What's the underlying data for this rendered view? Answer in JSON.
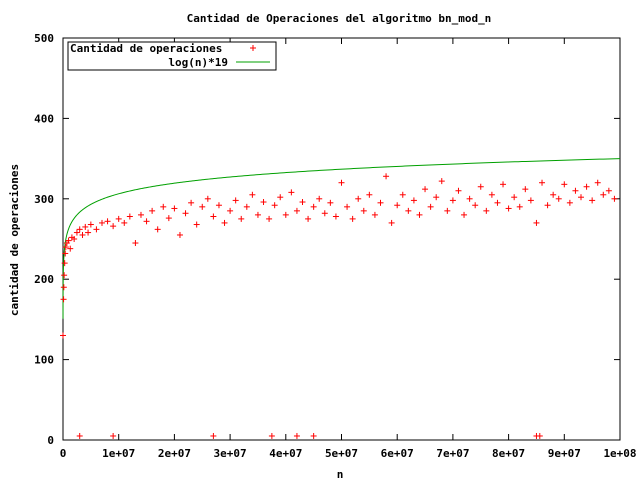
{
  "chart_data": {
    "type": "scatter",
    "title": "Cantidad de Operaciones del algoritmo bn_mod_n",
    "xlabel": "n",
    "ylabel": "cantidad de operaciones",
    "xlim": [
      0,
      100000000
    ],
    "ylim": [
      0,
      500
    ],
    "x_ticks": [
      0,
      10000000,
      20000000,
      30000000,
      40000000,
      50000000,
      60000000,
      70000000,
      80000000,
      90000000,
      100000000
    ],
    "x_tick_labels": [
      "0",
      "1e+07",
      "2e+07",
      "3e+07",
      "4e+07",
      "5e+07",
      "6e+07",
      "7e+07",
      "8e+07",
      "9e+07",
      "1e+08"
    ],
    "y_ticks": [
      0,
      100,
      200,
      300,
      400,
      500
    ],
    "y_tick_labels": [
      "0",
      "100",
      "200",
      "300",
      "400",
      "500"
    ],
    "grid": false,
    "legend_position": "top-left",
    "series": [
      {
        "name": "Cantidad de operaciones",
        "kind": "points",
        "marker": "plus",
        "color": "#ff0000",
        "points": [
          [
            0,
            130
          ],
          [
            100000,
            175
          ],
          [
            150000,
            190
          ],
          [
            200000,
            205
          ],
          [
            300000,
            220
          ],
          [
            400000,
            232
          ],
          [
            500000,
            240
          ],
          [
            700000,
            245
          ],
          [
            1000000,
            248
          ],
          [
            1300000,
            238
          ],
          [
            1600000,
            252
          ],
          [
            2000000,
            250
          ],
          [
            2500000,
            258
          ],
          [
            3000000,
            262
          ],
          [
            3500000,
            255
          ],
          [
            4000000,
            265
          ],
          [
            4500000,
            258
          ],
          [
            5000000,
            268
          ],
          [
            6000000,
            262
          ],
          [
            7000000,
            270
          ],
          [
            8000000,
            272
          ],
          [
            9000000,
            266
          ],
          [
            10000000,
            275
          ],
          [
            11000000,
            270
          ],
          [
            12000000,
            278
          ],
          [
            13000000,
            245
          ],
          [
            14000000,
            280
          ],
          [
            15000000,
            272
          ],
          [
            16000000,
            285
          ],
          [
            17000000,
            262
          ],
          [
            18000000,
            290
          ],
          [
            19000000,
            276
          ],
          [
            20000000,
            288
          ],
          [
            21000000,
            255
          ],
          [
            22000000,
            282
          ],
          [
            23000000,
            295
          ],
          [
            24000000,
            268
          ],
          [
            25000000,
            290
          ],
          [
            26000000,
            300
          ],
          [
            27000000,
            278
          ],
          [
            28000000,
            292
          ],
          [
            29000000,
            270
          ],
          [
            30000000,
            285
          ],
          [
            31000000,
            298
          ],
          [
            32000000,
            275
          ],
          [
            33000000,
            290
          ],
          [
            34000000,
            305
          ],
          [
            35000000,
            280
          ],
          [
            36000000,
            296
          ],
          [
            37000000,
            275
          ],
          [
            38000000,
            292
          ],
          [
            39000000,
            302
          ],
          [
            40000000,
            280
          ],
          [
            41000000,
            308
          ],
          [
            42000000,
            285
          ],
          [
            43000000,
            296
          ],
          [
            44000000,
            275
          ],
          [
            45000000,
            290
          ],
          [
            46000000,
            300
          ],
          [
            47000000,
            282
          ],
          [
            48000000,
            295
          ],
          [
            49000000,
            278
          ],
          [
            50000000,
            320
          ],
          [
            51000000,
            290
          ],
          [
            52000000,
            275
          ],
          [
            53000000,
            300
          ],
          [
            54000000,
            285
          ],
          [
            55000000,
            305
          ],
          [
            56000000,
            280
          ],
          [
            57000000,
            295
          ],
          [
            58000000,
            328
          ],
          [
            59000000,
            270
          ],
          [
            60000000,
            292
          ],
          [
            61000000,
            305
          ],
          [
            62000000,
            285
          ],
          [
            63000000,
            298
          ],
          [
            64000000,
            280
          ],
          [
            65000000,
            312
          ],
          [
            66000000,
            290
          ],
          [
            67000000,
            302
          ],
          [
            68000000,
            322
          ],
          [
            69000000,
            285
          ],
          [
            70000000,
            298
          ],
          [
            71000000,
            310
          ],
          [
            72000000,
            280
          ],
          [
            73000000,
            300
          ],
          [
            74000000,
            292
          ],
          [
            75000000,
            315
          ],
          [
            76000000,
            285
          ],
          [
            77000000,
            305
          ],
          [
            78000000,
            295
          ],
          [
            79000000,
            318
          ],
          [
            80000000,
            288
          ],
          [
            81000000,
            302
          ],
          [
            82000000,
            290
          ],
          [
            83000000,
            312
          ],
          [
            84000000,
            298
          ],
          [
            85000000,
            270
          ],
          [
            86000000,
            320
          ],
          [
            87000000,
            292
          ],
          [
            88000000,
            305
          ],
          [
            89000000,
            300
          ],
          [
            90000000,
            318
          ],
          [
            91000000,
            295
          ],
          [
            92000000,
            310
          ],
          [
            93000000,
            302
          ],
          [
            94000000,
            315
          ],
          [
            95000000,
            298
          ],
          [
            96000000,
            320
          ],
          [
            97000000,
            305
          ],
          [
            98000000,
            310
          ],
          [
            99000000,
            300
          ],
          [
            3000000,
            5
          ],
          [
            9000000,
            5
          ],
          [
            27000000,
            5
          ],
          [
            37500000,
            5
          ],
          [
            42000000,
            5
          ],
          [
            45000000,
            5
          ],
          [
            85000000,
            5
          ],
          [
            85600000,
            5
          ]
        ]
      },
      {
        "name": "log(n)*19",
        "kind": "line",
        "color": "#00a000",
        "function": "log",
        "coefficient": 19
      }
    ]
  }
}
